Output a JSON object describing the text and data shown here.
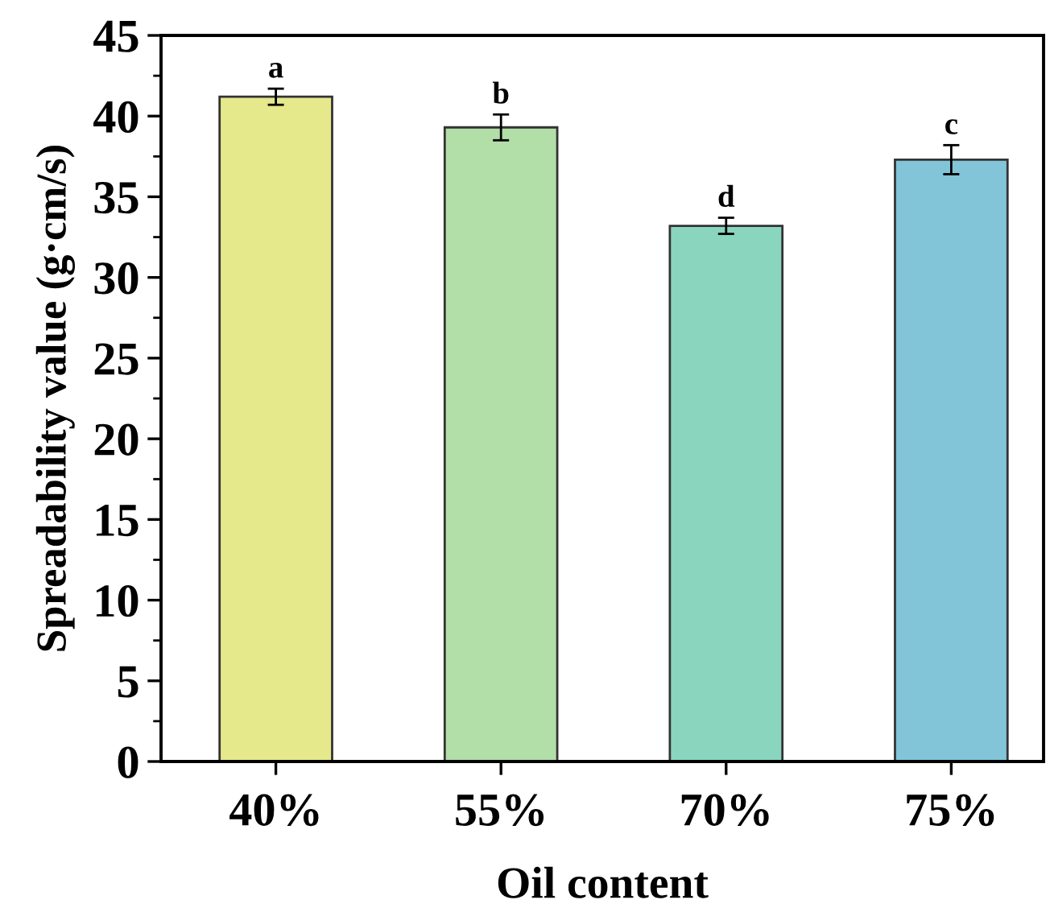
{
  "chart_data": {
    "type": "bar",
    "xlabel": "Oil content",
    "ylabel": "Spreadability value (g·cm/s)",
    "categories": [
      "40%",
      "55%",
      "70%",
      "75%"
    ],
    "values": [
      41.2,
      39.3,
      33.2,
      37.3
    ],
    "errors": [
      0.5,
      0.8,
      0.5,
      0.9
    ],
    "colors": [
      "#e5e98c",
      "#b2dea8",
      "#8ad5bd",
      "#82c5d9"
    ],
    "ylim": [
      0,
      45
    ],
    "yticks": [
      0,
      {
        "value": 2.5,
        "label": null
      },
      5,
      {
        "value": 7.5,
        "label": null
      },
      10,
      {
        "value": 12.5,
        "label": null
      },
      15,
      {
        "value": 17.5,
        "label": null
      },
      20,
      {
        "value": 22.5,
        "label": null
      },
      25,
      {
        "value": 27.5,
        "label": null
      },
      30,
      {
        "value": 32.5,
        "label": null
      },
      35,
      {
        "value": 37.5,
        "label": null
      },
      40,
      {
        "value": 42.5,
        "label": null
      },
      45
    ],
    "annotations": [
      {
        "text": "a",
        "x": "40%",
        "y": 41.7
      },
      {
        "text": "b",
        "x": "55%",
        "y": 40.1
      },
      {
        "text": "d",
        "x": "70%",
        "y": 33.7
      },
      {
        "text": "c",
        "x": "75%",
        "y": 38.2
      }
    ],
    "grid": false,
    "legend": false
  }
}
